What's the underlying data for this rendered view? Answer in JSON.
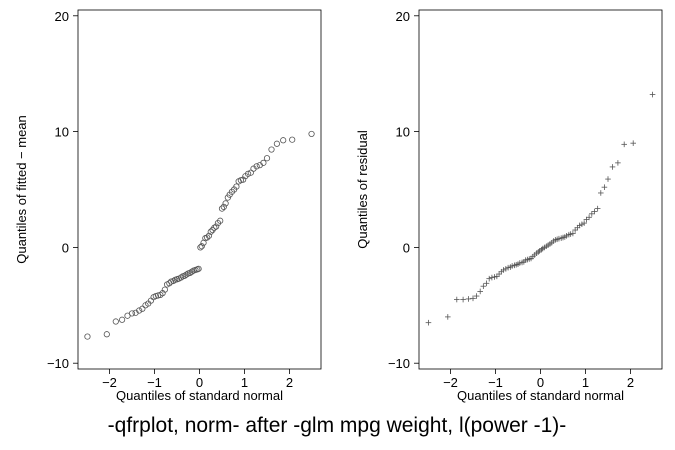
{
  "caption": "-qfrplot, norm- after -glm mpg weight, l(power -1)-",
  "chart_data": [
    {
      "type": "scatter",
      "marker": "hollow-circle",
      "xlabel": "Quantiles of standard normal",
      "ylabel": "Quantiles of fitted − mean",
      "xlim": [
        -2.7,
        2.7
      ],
      "ylim": [
        -10.5,
        20.5
      ],
      "xticks": [
        -2,
        -1,
        0,
        1,
        2
      ],
      "yticks": [
        -10,
        0,
        10,
        20
      ],
      "grid": false,
      "points": [
        [
          -2.49,
          -7.7
        ],
        [
          -2.06,
          -7.5
        ],
        [
          -1.86,
          -6.4
        ],
        [
          -1.72,
          -6.25
        ],
        [
          -1.6,
          -5.9
        ],
        [
          -1.5,
          -5.7
        ],
        [
          -1.42,
          -5.65
        ],
        [
          -1.34,
          -5.45
        ],
        [
          -1.27,
          -5.3
        ],
        [
          -1.2,
          -5.0
        ],
        [
          -1.14,
          -4.85
        ],
        [
          -1.08,
          -4.6
        ],
        [
          -1.02,
          -4.3
        ],
        [
          -0.97,
          -4.2
        ],
        [
          -0.92,
          -4.15
        ],
        [
          -0.87,
          -4.1
        ],
        [
          -0.82,
          -3.95
        ],
        [
          -0.77,
          -3.65
        ],
        [
          -0.72,
          -3.2
        ],
        [
          -0.67,
          -3.1
        ],
        [
          -0.63,
          -2.95
        ],
        [
          -0.58,
          -2.9
        ],
        [
          -0.54,
          -2.8
        ],
        [
          -0.5,
          -2.75
        ],
        [
          -0.46,
          -2.7
        ],
        [
          -0.41,
          -2.6
        ],
        [
          -0.37,
          -2.5
        ],
        [
          -0.33,
          -2.45
        ],
        [
          -0.29,
          -2.35
        ],
        [
          -0.25,
          -2.25
        ],
        [
          -0.21,
          -2.2
        ],
        [
          -0.17,
          -2.1
        ],
        [
          -0.13,
          -2.0
        ],
        [
          -0.09,
          -1.95
        ],
        [
          -0.05,
          -1.9
        ],
        [
          -0.02,
          -1.85
        ],
        [
          0.02,
          0.0
        ],
        [
          0.05,
          0.1
        ],
        [
          0.09,
          0.4
        ],
        [
          0.13,
          0.8
        ],
        [
          0.17,
          0.85
        ],
        [
          0.21,
          1.0
        ],
        [
          0.25,
          1.35
        ],
        [
          0.29,
          1.5
        ],
        [
          0.33,
          1.7
        ],
        [
          0.37,
          1.8
        ],
        [
          0.41,
          2.1
        ],
        [
          0.46,
          2.3
        ],
        [
          0.5,
          3.35
        ],
        [
          0.54,
          3.5
        ],
        [
          0.58,
          3.8
        ],
        [
          0.63,
          4.3
        ],
        [
          0.67,
          4.55
        ],
        [
          0.72,
          4.8
        ],
        [
          0.77,
          5.0
        ],
        [
          0.82,
          5.25
        ],
        [
          0.87,
          5.7
        ],
        [
          0.92,
          5.8
        ],
        [
          0.97,
          5.85
        ],
        [
          1.02,
          6.15
        ],
        [
          1.08,
          6.35
        ],
        [
          1.14,
          6.45
        ],
        [
          1.2,
          6.8
        ],
        [
          1.27,
          7.0
        ],
        [
          1.34,
          7.1
        ],
        [
          1.42,
          7.3
        ],
        [
          1.5,
          7.7
        ],
        [
          1.6,
          8.45
        ],
        [
          1.72,
          8.95
        ],
        [
          1.86,
          9.25
        ],
        [
          2.06,
          9.3
        ],
        [
          2.49,
          9.8
        ]
      ]
    },
    {
      "type": "scatter",
      "marker": "plus",
      "xlabel": "Quantiles of standard normal",
      "ylabel": "Quantiles of residual",
      "xlim": [
        -2.7,
        2.7
      ],
      "ylim": [
        -10.5,
        20.5
      ],
      "xticks": [
        -2,
        -1,
        0,
        1,
        2
      ],
      "yticks": [
        -10,
        0,
        10,
        20
      ],
      "grid": false,
      "points": [
        [
          -2.49,
          -6.5
        ],
        [
          -2.06,
          -6.0
        ],
        [
          -1.86,
          -4.5
        ],
        [
          -1.72,
          -4.5
        ],
        [
          -1.6,
          -4.45
        ],
        [
          -1.5,
          -4.4
        ],
        [
          -1.42,
          -4.2
        ],
        [
          -1.34,
          -3.8
        ],
        [
          -1.27,
          -3.35
        ],
        [
          -1.2,
          -3.1
        ],
        [
          -1.14,
          -2.7
        ],
        [
          -1.08,
          -2.6
        ],
        [
          -1.02,
          -2.55
        ],
        [
          -0.97,
          -2.5
        ],
        [
          -0.92,
          -2.3
        ],
        [
          -0.87,
          -2.1
        ],
        [
          -0.82,
          -1.95
        ],
        [
          -0.77,
          -1.85
        ],
        [
          -0.72,
          -1.75
        ],
        [
          -0.67,
          -1.7
        ],
        [
          -0.63,
          -1.6
        ],
        [
          -0.58,
          -1.55
        ],
        [
          -0.54,
          -1.5
        ],
        [
          -0.5,
          -1.45
        ],
        [
          -0.46,
          -1.35
        ],
        [
          -0.41,
          -1.3
        ],
        [
          -0.37,
          -1.25
        ],
        [
          -0.33,
          -1.1
        ],
        [
          -0.29,
          -1.05
        ],
        [
          -0.25,
          -1.0
        ],
        [
          -0.21,
          -0.95
        ],
        [
          -0.17,
          -0.8
        ],
        [
          -0.13,
          -0.65
        ],
        [
          -0.09,
          -0.5
        ],
        [
          -0.05,
          -0.4
        ],
        [
          -0.02,
          -0.3
        ],
        [
          0.02,
          -0.2
        ],
        [
          0.05,
          -0.1
        ],
        [
          0.09,
          0.0
        ],
        [
          0.13,
          0.1
        ],
        [
          0.17,
          0.2
        ],
        [
          0.21,
          0.3
        ],
        [
          0.25,
          0.4
        ],
        [
          0.29,
          0.55
        ],
        [
          0.33,
          0.65
        ],
        [
          0.37,
          0.7
        ],
        [
          0.41,
          0.75
        ],
        [
          0.46,
          0.8
        ],
        [
          0.5,
          0.85
        ],
        [
          0.54,
          0.9
        ],
        [
          0.58,
          1.0
        ],
        [
          0.63,
          1.1
        ],
        [
          0.67,
          1.15
        ],
        [
          0.72,
          1.2
        ],
        [
          0.77,
          1.5
        ],
        [
          0.82,
          1.7
        ],
        [
          0.87,
          1.9
        ],
        [
          0.92,
          2.0
        ],
        [
          0.97,
          2.1
        ],
        [
          1.02,
          2.4
        ],
        [
          1.08,
          2.6
        ],
        [
          1.14,
          2.9
        ],
        [
          1.2,
          3.1
        ],
        [
          1.27,
          3.35
        ],
        [
          1.34,
          4.7
        ],
        [
          1.42,
          5.2
        ],
        [
          1.5,
          5.9
        ],
        [
          1.6,
          6.95
        ],
        [
          1.72,
          7.3
        ],
        [
          1.86,
          8.9
        ],
        [
          2.06,
          9.0
        ],
        [
          2.49,
          13.2
        ]
      ]
    }
  ]
}
